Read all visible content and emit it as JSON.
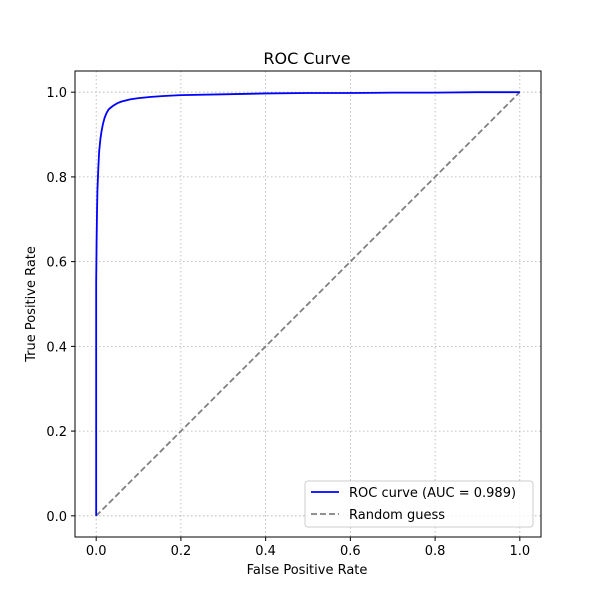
{
  "chart_data": {
    "type": "line",
    "title": "ROC Curve",
    "xlabel": "False Positive Rate",
    "ylabel": "True Positive Rate",
    "xlim": [
      -0.05,
      1.05
    ],
    "ylim": [
      -0.05,
      1.05
    ],
    "xticks": [
      0.0,
      0.2,
      0.4,
      0.6,
      0.8,
      1.0
    ],
    "yticks": [
      0.0,
      0.2,
      0.4,
      0.6,
      0.8,
      1.0
    ],
    "xtick_labels": [
      "0.0",
      "0.2",
      "0.4",
      "0.6",
      "0.8",
      "1.0"
    ],
    "ytick_labels": [
      "0.0",
      "0.2",
      "0.4",
      "0.6",
      "0.8",
      "1.0"
    ],
    "grid": true,
    "legend_position": "bottom-right",
    "series": [
      {
        "name": "ROC curve (AUC = 0.989)",
        "color": "#0000ff",
        "style": "solid",
        "x": [
          0.0,
          0.0,
          0.001,
          0.002,
          0.003,
          0.005,
          0.007,
          0.01,
          0.013,
          0.016,
          0.02,
          0.025,
          0.03,
          0.04,
          0.05,
          0.06,
          0.08,
          0.1,
          0.13,
          0.16,
          0.2,
          0.3,
          0.4,
          0.5,
          0.6,
          0.7,
          0.8,
          0.9,
          1.0
        ],
        "y": [
          0.0,
          0.55,
          0.65,
          0.72,
          0.77,
          0.82,
          0.86,
          0.89,
          0.91,
          0.925,
          0.94,
          0.952,
          0.96,
          0.968,
          0.974,
          0.978,
          0.983,
          0.986,
          0.989,
          0.991,
          0.993,
          0.995,
          0.997,
          0.998,
          0.998,
          0.999,
          0.999,
          1.0,
          1.0
        ]
      },
      {
        "name": "Random guess",
        "color": "#808080",
        "style": "dashed",
        "x": [
          0.0,
          1.0
        ],
        "y": [
          0.0,
          1.0
        ]
      }
    ]
  }
}
